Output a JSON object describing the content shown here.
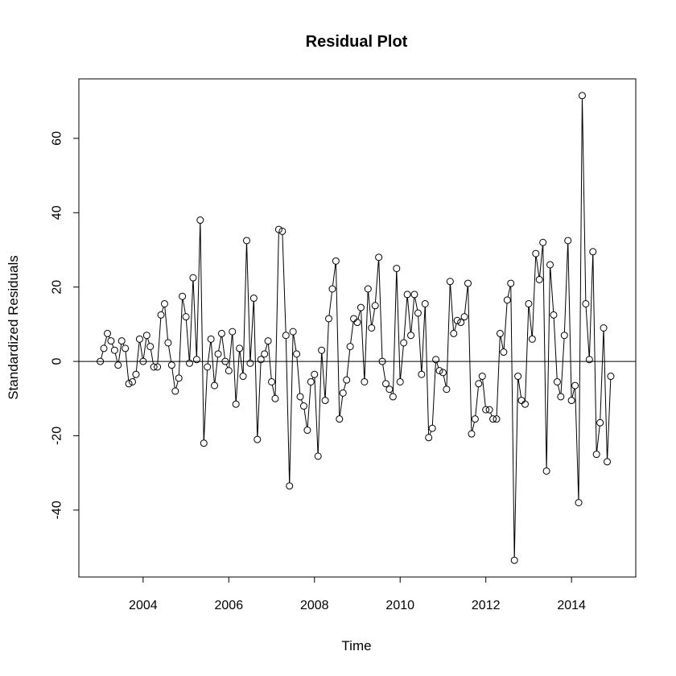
{
  "chart_data": {
    "type": "line",
    "title": "Residual Plot",
    "xlabel": "Time",
    "ylabel": "Standardized Residuals",
    "xlim": [
      2002.5,
      2015.5
    ],
    "ylim": [
      -58,
      76
    ],
    "x_ticks": [
      2004,
      2006,
      2008,
      2010,
      2012,
      2014
    ],
    "x_tick_labels": [
      "2004",
      "2006",
      "2008",
      "2010",
      "2012",
      "2014"
    ],
    "y_ticks": [
      -40,
      -20,
      0,
      20,
      40,
      60
    ],
    "y_tick_labels": [
      "-40",
      "-20",
      "0",
      "20",
      "40",
      "60"
    ],
    "reference_line": 0,
    "markers": "open-circle",
    "grid": false,
    "x_start": 2003.0,
    "x_step": 0.0833333,
    "values": [
      0,
      3.5,
      7.5,
      5.5,
      3,
      -1,
      5.5,
      3.5,
      -6,
      -5.5,
      -3.5,
      6,
      0,
      7,
      4,
      -1.5,
      -1.5,
      12.5,
      15.5,
      5,
      -1,
      -8,
      -4.5,
      17.5,
      12,
      -0.5,
      22.5,
      0.5,
      38,
      -22,
      -1.5,
      6,
      -6.5,
      2,
      7.5,
      0,
      -2.5,
      8,
      -11.5,
      3.5,
      -4,
      32.5,
      -0.5,
      17,
      -21,
      0.5,
      2,
      5.5,
      -5.5,
      -10,
      35.5,
      35,
      7,
      -33.5,
      8,
      2,
      -9.5,
      -12,
      -18.5,
      -5.5,
      -3.5,
      -25.5,
      3,
      -10.5,
      11.5,
      19.5,
      27,
      -15.5,
      -8.5,
      -5,
      4,
      11.5,
      10.5,
      14.5,
      -5.5,
      19.5,
      9,
      15,
      28,
      0,
      -6,
      -7.5,
      -9.5,
      25,
      -5.5,
      5,
      18,
      7,
      18,
      13,
      -3.5,
      15.5,
      -20.5,
      -18,
      0.5,
      -2.5,
      -3,
      -7.5,
      21.5,
      7.5,
      11,
      10.5,
      12,
      21,
      -19.5,
      -15.5,
      -6,
      -4,
      -13,
      -13,
      -15.5,
      -15.5,
      7.5,
      2.5,
      16.5,
      21,
      -53.5,
      -4,
      -10.5,
      -11.5,
      15.5,
      6,
      29,
      22,
      32,
      -29.5,
      26,
      12.5,
      -5.5,
      -9.5,
      7,
      32.5,
      -10.5,
      -6.5,
      -38,
      71.5,
      15.5,
      0.5,
      29.5,
      -25,
      -16.5,
      9,
      -27,
      -4
    ]
  }
}
